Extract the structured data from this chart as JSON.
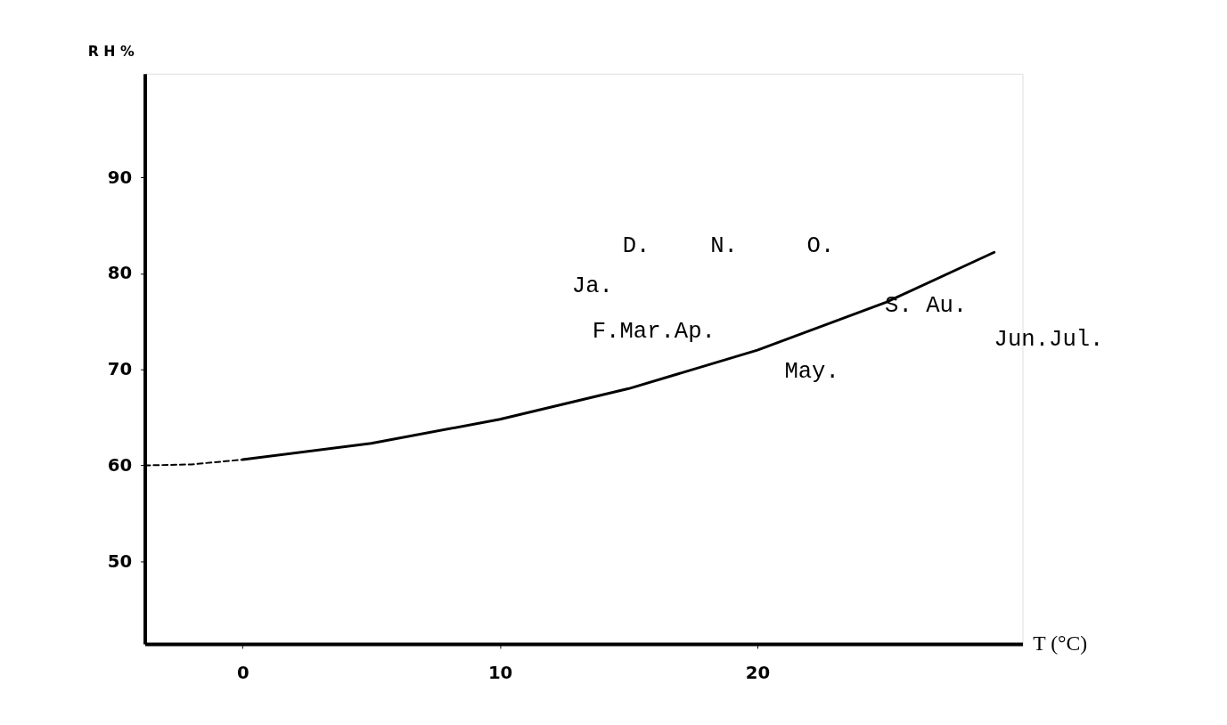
{
  "chart_data": {
    "type": "line",
    "xlabel": "T (°C)",
    "ylabel": "R H %",
    "xlim": [
      -3.8,
      30.3
    ],
    "xticks": [
      0,
      10,
      20
    ],
    "ylim": [
      41.4,
      100.8
    ],
    "yticks": [
      50,
      60,
      70,
      80,
      90
    ],
    "grid": false,
    "marker": "none",
    "series": [
      {
        "color": "#000000",
        "line_style": "dashed",
        "x": [
          -3.8,
          -2,
          0
        ],
        "values": [
          60,
          60.1,
          60.6
        ]
      },
      {
        "color": "#000000",
        "line_style": "solid",
        "x": [
          0,
          5,
          10,
          15,
          20,
          25,
          29.2
        ],
        "values": [
          60.6,
          62.3,
          64.8,
          68,
          72,
          77,
          82.2
        ]
      }
    ],
    "annotations": [
      "D.",
      "N.",
      "O.",
      "Ja.",
      "F.Mar.Ap.",
      "May.",
      "S. Au.",
      "Jun.Jul."
    ]
  }
}
